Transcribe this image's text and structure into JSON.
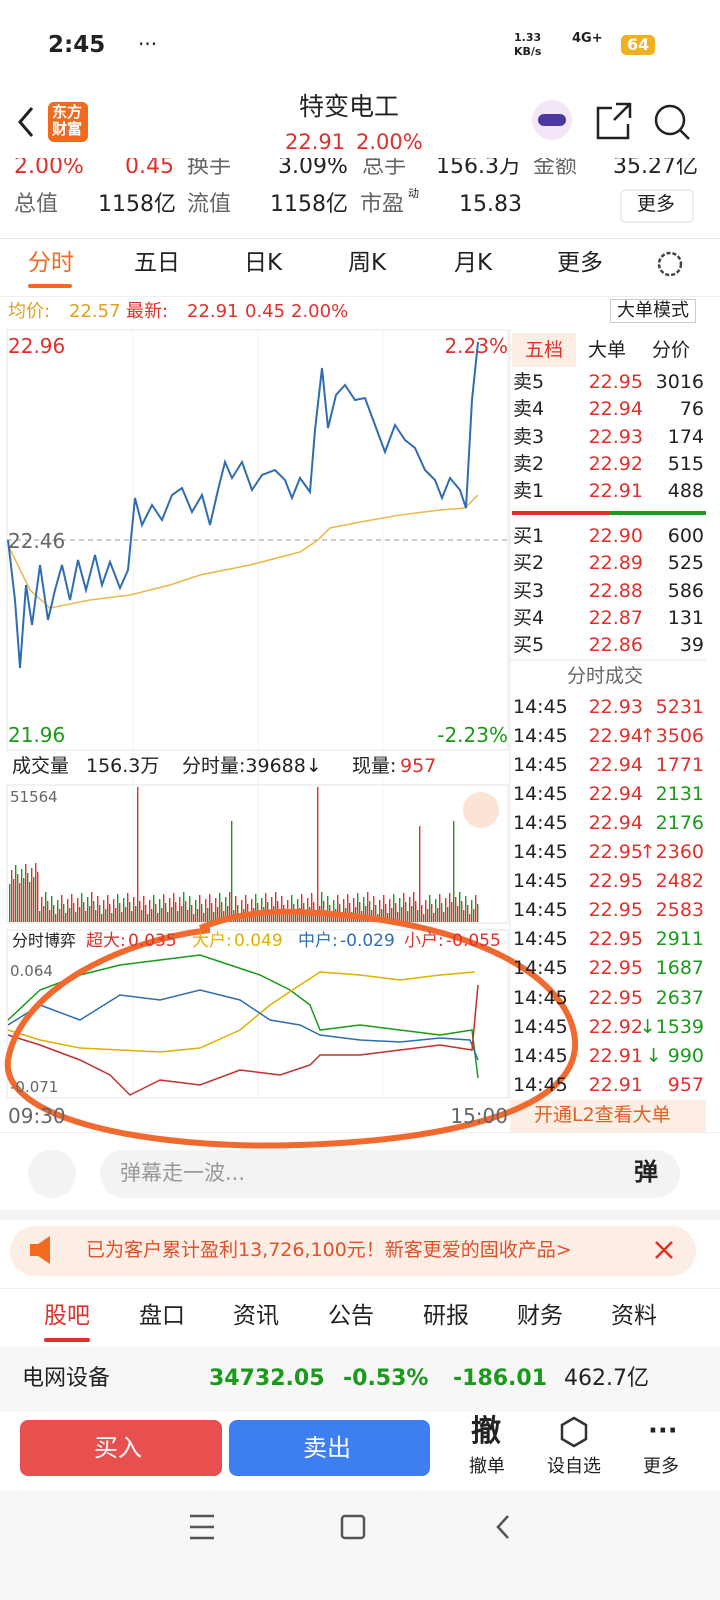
{
  "status": {
    "time": "2:45",
    "dots": "···",
    "speed": "1.33",
    "speed_unit": "KB/s",
    "network": "4G+",
    "battery": "64"
  },
  "header": {
    "logo_top": "东方",
    "logo_bottom": "财富",
    "title": "特变电工",
    "price": "22.91",
    "change": "2.00%"
  },
  "stats": {
    "row1": [
      "2.00%",
      "0.45",
      "换手",
      "3.09%",
      "总手",
      "156.3万",
      "金额",
      "35.27亿"
    ],
    "row2": [
      "总值",
      "1158亿",
      "流值",
      "1158亿",
      "市盈",
      "动",
      "15.83"
    ],
    "more": "更多"
  },
  "tabs": [
    "分时",
    "五日",
    "日K",
    "周K",
    "月K",
    "更多"
  ],
  "info": {
    "avg_label": "均价:",
    "avg": "22.57",
    "last_label": "最新:",
    "last": "22.91",
    "chg": "0.45",
    "pct": "2.00%",
    "mode": "大单模式"
  },
  "price_chart": {
    "high": "22.96",
    "high_pct": "2.23%",
    "mid": "22.46",
    "low": "21.96",
    "low_pct": "-2.23%"
  },
  "volume": {
    "label": "成交量",
    "total": "156.3万",
    "minute": "分时量:39688↓",
    "current_label": "现量:",
    "current": "957",
    "max": "51564"
  },
  "game": {
    "label": "分时博弈",
    "items": [
      {
        "name": "超大:",
        "value": "0.035"
      },
      {
        "name": "大户:",
        "value": "0.049"
      },
      {
        "name": "中户:",
        "value": "-0.029"
      },
      {
        "name": "小户:",
        "value": "-0.055"
      }
    ],
    "top": "0.064",
    "bottom": "-0.071"
  },
  "time_axis": [
    "09:30",
    "15:00"
  ],
  "book": {
    "tabs": [
      "五档",
      "大单",
      "分价"
    ],
    "asks": [
      {
        "label": "卖5",
        "price": "22.95",
        "volume": "3016"
      },
      {
        "label": "卖4",
        "price": "22.94",
        "volume": "76"
      },
      {
        "label": "卖3",
        "price": "22.93",
        "volume": "174"
      },
      {
        "label": "卖2",
        "price": "22.92",
        "volume": "515"
      },
      {
        "label": "卖1",
        "price": "22.91",
        "volume": "488"
      }
    ],
    "bids": [
      {
        "label": "买1",
        "price": "22.90",
        "volume": "600"
      },
      {
        "label": "买2",
        "price": "22.89",
        "volume": "525"
      },
      {
        "label": "买3",
        "price": "22.88",
        "volume": "586"
      },
      {
        "label": "买4",
        "price": "22.87",
        "volume": "131"
      },
      {
        "label": "买5",
        "price": "22.86",
        "volume": "39"
      }
    ]
  },
  "trades": {
    "title": "分时成交",
    "rows": [
      {
        "time": "14:45",
        "price": "22.93",
        "volume": "5231",
        "color": "#e0302b"
      },
      {
        "time": "14:45",
        "price": "22.94",
        "volume": "↑3506",
        "color": "#e0302b"
      },
      {
        "time": "14:45",
        "price": "22.94",
        "volume": "1771",
        "color": "#e0302b"
      },
      {
        "time": "14:45",
        "price": "22.94",
        "volume": "2131",
        "color": "#1a9a1a"
      },
      {
        "time": "14:45",
        "price": "22.94",
        "volume": "2176",
        "color": "#1a9a1a"
      },
      {
        "time": "14:45",
        "price": "22.95",
        "volume": "↑2360",
        "color": "#e0302b"
      },
      {
        "time": "14:45",
        "price": "22.95",
        "volume": "2482",
        "color": "#e0302b"
      },
      {
        "time": "14:45",
        "price": "22.95",
        "volume": "2583",
        "color": "#e0302b"
      },
      {
        "time": "14:45",
        "price": "22.95",
        "volume": "2911",
        "color": "#1a9a1a"
      },
      {
        "time": "14:45",
        "price": "22.95",
        "volume": "1687",
        "color": "#1a9a1a"
      },
      {
        "time": "14:45",
        "price": "22.95",
        "volume": "2637",
        "color": "#1a9a1a"
      },
      {
        "time": "14:45",
        "price": "22.92",
        "volume": "↓1539",
        "color": "#1a9a1a"
      },
      {
        "time": "14:45",
        "price": "22.91",
        "volume": "↓ 990",
        "color": "#1a9a1a"
      },
      {
        "time": "14:45",
        "price": "22.91",
        "volume": "957",
        "color": "#e0302b"
      }
    ]
  },
  "l2": "开通L2查看大单",
  "comment": {
    "placeholder": "弹幕走一波...",
    "button": "弹"
  },
  "banner": "已为客户累计盈利13,726,100元！新客更爱的固收产品>",
  "bottom_tabs": [
    "股吧",
    "盘口",
    "资讯",
    "公告",
    "研报",
    "财务",
    "资料"
  ],
  "sector": {
    "name": "电网设备",
    "price": "34732.05",
    "pct": "-0.53%",
    "chg": "-186.01",
    "amount": "462.7亿"
  },
  "actions": {
    "buy": "买入",
    "sell": "卖出",
    "cancel_icon": "撤",
    "cancel": "撤单",
    "watch": "设自选",
    "more": "更多"
  }
}
